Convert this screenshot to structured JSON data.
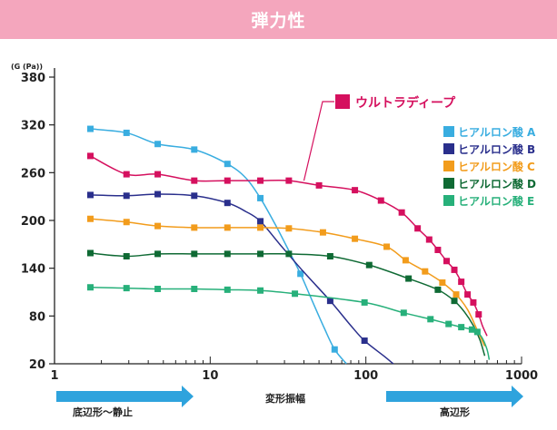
{
  "header": {
    "title": "弾力性"
  },
  "chart_data": {
    "type": "line",
    "title": "弾力性",
    "ylabel": "(G (Pa))",
    "xlabel": "変形振幅",
    "x_scale": "log",
    "xlim": [
      1,
      1000
    ],
    "ylim": [
      20,
      380
    ],
    "x_ticks": [
      1,
      10,
      100,
      1000
    ],
    "x_tick_labels": [
      "1",
      "10",
      "100",
      "1000"
    ],
    "y_ticks": [
      20,
      80,
      140,
      200,
      260,
      320,
      380
    ],
    "y_tick_labels": [
      "20",
      "80",
      "140",
      "200",
      "260",
      "320",
      "380"
    ],
    "arrow_left_label": "底辺形〜静止",
    "arrow_right_label": "高辺形",
    "series": [
      {
        "name": "ヒアルロン酸 A",
        "color": "#39ade0",
        "marker": "square",
        "x": [
          1.7,
          2.9,
          4.6,
          7.9,
          12.9,
          21,
          38,
          63
        ],
        "y": [
          315,
          310,
          296,
          289,
          271,
          228,
          133,
          38
        ],
        "curve_x": [
          1.7,
          2.9,
          4.6,
          7.9,
          12.9,
          17,
          21,
          26,
          32,
          38,
          45,
          54,
          63,
          75
        ],
        "curve_y": [
          315,
          310,
          296,
          289,
          271,
          253,
          228,
          196,
          162,
          133,
          100,
          65,
          38,
          20
        ]
      },
      {
        "name": "ヒアルロン酸 B",
        "color": "#2a2f8c",
        "marker": "square",
        "x": [
          1.7,
          2.9,
          4.6,
          7.9,
          12.9,
          21,
          59,
          98
        ],
        "y": [
          232,
          231,
          233,
          231,
          222,
          199,
          99,
          49
        ],
        "curve_x": [
          1.7,
          2.9,
          4.6,
          7.9,
          12.9,
          17,
          21,
          28,
          40,
          59,
          80,
          98,
          130,
          150
        ],
        "curve_y": [
          232,
          231,
          233,
          231,
          222,
          211,
          199,
          170,
          135,
          99,
          68,
          49,
          30,
          20
        ]
      },
      {
        "name": "ヒアルロン酸 C",
        "color": "#f29c1c",
        "marker": "square",
        "x": [
          1.7,
          2.9,
          4.6,
          7.9,
          12.9,
          21,
          32,
          53,
          85,
          136,
          180,
          240,
          310,
          380
        ],
        "y": [
          202,
          198,
          193,
          191,
          191,
          191,
          190,
          185,
          177,
          167,
          150,
          136,
          122,
          107
        ],
        "curve_x": [
          1.7,
          2.9,
          4.6,
          7.9,
          12.9,
          21,
          32,
          53,
          85,
          136,
          180,
          240,
          310,
          380,
          450,
          520,
          580
        ],
        "curve_y": [
          202,
          198,
          193,
          191,
          191,
          191,
          190,
          185,
          177,
          167,
          150,
          136,
          122,
          107,
          88,
          62,
          42
        ]
      },
      {
        "name": "ヒアルロン酸 D",
        "color": "#0f6a34",
        "marker": "square",
        "x": [
          1.7,
          2.9,
          4.6,
          7.9,
          12.9,
          21,
          32,
          59,
          105,
          188,
          290,
          370
        ],
        "y": [
          159,
          155,
          158,
          158,
          158,
          158,
          158,
          155,
          144,
          127,
          113,
          99
        ],
        "curve_x": [
          1.7,
          2.9,
          4.6,
          7.9,
          12.9,
          21,
          32,
          59,
          105,
          188,
          290,
          370,
          430,
          490,
          540,
          580
        ],
        "curve_y": [
          159,
          155,
          158,
          158,
          158,
          158,
          158,
          155,
          144,
          127,
          113,
          99,
          85,
          68,
          50,
          30
        ]
      },
      {
        "name": "ヒアルロン酸 E",
        "color": "#27b07a",
        "marker": "square",
        "x": [
          1.7,
          2.9,
          4.6,
          7.9,
          12.9,
          21,
          35,
          98,
          175,
          260,
          340,
          410,
          480,
          520
        ],
        "y": [
          116,
          115,
          114,
          114,
          113,
          112,
          108,
          97,
          84,
          76,
          70,
          66,
          63,
          60
        ],
        "curve_x": [
          1.7,
          2.9,
          4.6,
          7.9,
          12.9,
          21,
          35,
          98,
          175,
          260,
          340,
          410,
          480,
          520,
          560,
          600,
          620
        ],
        "curve_y": [
          116,
          115,
          114,
          114,
          113,
          112,
          108,
          97,
          84,
          76,
          70,
          66,
          63,
          60,
          52,
          38,
          25
        ]
      },
      {
        "name": "ウルトラディープ",
        "color": "#d5105e",
        "marker": "square",
        "x": [
          1.7,
          2.9,
          4.6,
          7.9,
          12.9,
          21,
          32,
          50,
          85,
          125,
          170,
          215,
          255,
          290,
          330,
          370,
          410,
          450,
          490,
          530
        ],
        "y": [
          281,
          258,
          258,
          250,
          250,
          250,
          250,
          244,
          238,
          225,
          210,
          190,
          176,
          163,
          149,
          138,
          123,
          107,
          97,
          82
        ],
        "curve_x": [
          1.7,
          2.9,
          4.6,
          7.9,
          12.9,
          21,
          32,
          50,
          85,
          125,
          170,
          215,
          255,
          290,
          330,
          370,
          410,
          450,
          490,
          530,
          560,
          600
        ],
        "curve_y": [
          281,
          258,
          258,
          250,
          250,
          250,
          250,
          244,
          238,
          225,
          210,
          190,
          176,
          163,
          149,
          138,
          123,
          107,
          97,
          82,
          68,
          55
        ]
      }
    ],
    "callout_label": "ウルトラディープ"
  }
}
